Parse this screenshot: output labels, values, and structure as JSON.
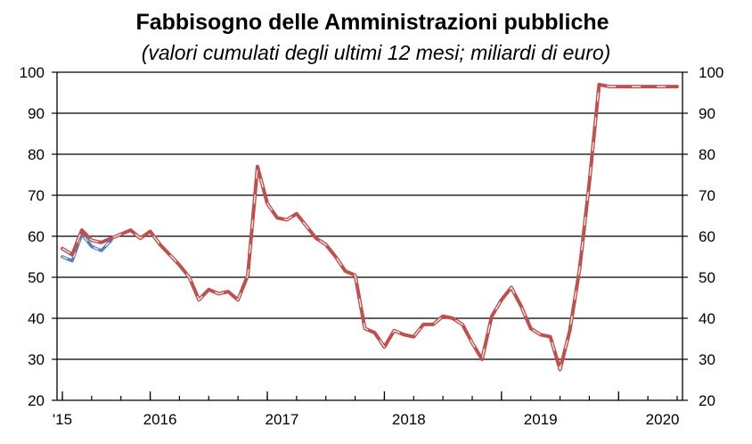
{
  "chart_data": {
    "type": "line",
    "title": "Fabbisogno delle Amministrazioni pubbliche",
    "subtitle": "(valori cumulati degli ultimi 12 mesi; miliardi di euro)",
    "ylim": [
      20,
      100
    ],
    "yticks": [
      20,
      30,
      40,
      50,
      60,
      70,
      80,
      90,
      100
    ],
    "xlim": [
      0,
      63
    ],
    "x_tick_labels": [
      {
        "label": "'15",
        "x": 0
      },
      {
        "label": "2016",
        "x": 10
      },
      {
        "label": "2017",
        "x": 22.5
      },
      {
        "label": "2018",
        "x": 35.5
      },
      {
        "label": "2019",
        "x": 49
      },
      {
        "label": "2020",
        "x": 61.5
      }
    ],
    "grid": true,
    "series": [
      {
        "color": "#4f81bd",
        "style": "dash-dot",
        "x": [
          0,
          1,
          2,
          3,
          4,
          5
        ],
        "values": [
          55,
          54,
          60.5,
          57.5,
          56.5,
          59
        ]
      },
      {
        "color": "#c0504d",
        "style": "solid",
        "x": [
          0,
          1,
          2,
          3,
          4,
          5,
          6,
          7,
          8,
          9,
          10,
          11,
          12,
          13,
          14,
          15,
          16,
          17,
          18,
          19,
          20,
          21,
          22,
          23,
          24,
          25,
          26,
          27,
          28,
          29,
          30,
          31,
          32,
          33,
          34,
          35,
          36,
          37,
          38,
          39,
          40,
          41,
          42,
          43,
          44,
          45,
          46,
          47,
          48,
          49,
          50,
          51,
          52,
          53,
          54,
          55,
          56,
          57,
          58,
          59,
          60,
          61,
          62,
          63
        ],
        "values": [
          57,
          55.5,
          61.5,
          59,
          58.5,
          59.5,
          60.5,
          61.5,
          59.5,
          61.2,
          58,
          55.5,
          53,
          50,
          44.5,
          47,
          46,
          46.5,
          44.5,
          50.5,
          77,
          68,
          64.5,
          64,
          65.5,
          62.5,
          59.5,
          58,
          55,
          51.5,
          50.5,
          37.5,
          36.5,
          33,
          37,
          36,
          35.5,
          38.5,
          38.5,
          40.5,
          40,
          38.5,
          34,
          30,
          40.5,
          44.5,
          47.5,
          43,
          37.5,
          36,
          35.5,
          27.5,
          37,
          52,
          73,
          97,
          96.5,
          96.5,
          96.5,
          96.5,
          96.5,
          96.5,
          96.5,
          96.5
        ]
      }
    ]
  }
}
